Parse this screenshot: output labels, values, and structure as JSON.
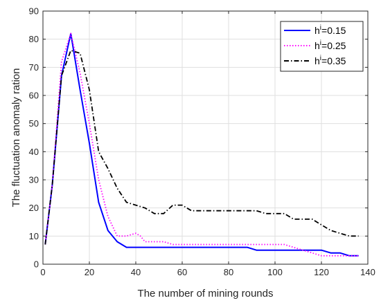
{
  "chart_data": {
    "type": "line",
    "title": "",
    "xlabel": "The number of mining rounds",
    "ylabel": "The fluctuation anomaly ration",
    "xlim": [
      0,
      140
    ],
    "ylim": [
      0,
      90
    ],
    "xticks": [
      0,
      20,
      40,
      60,
      80,
      100,
      120,
      140
    ],
    "yticks": [
      0,
      10,
      20,
      30,
      40,
      50,
      60,
      70,
      80,
      90
    ],
    "grid": true,
    "legend_position": "top-right",
    "series": [
      {
        "name_base": "h",
        "name_sup": "i",
        "name_value": "=0.15",
        "color": "#0000ff",
        "style": "solid",
        "x": [
          1,
          4,
          8,
          12,
          16,
          20,
          24,
          28,
          32,
          36,
          40,
          44,
          48,
          52,
          56,
          60,
          64,
          68,
          72,
          76,
          80,
          84,
          88,
          92,
          96,
          100,
          104,
          108,
          112,
          116,
          120,
          124,
          128,
          132,
          136
        ],
        "y": [
          7,
          28,
          67,
          82,
          62,
          43,
          22,
          12,
          8,
          6,
          6,
          6,
          6,
          6,
          6,
          6,
          6,
          6,
          6,
          6,
          6,
          6,
          6,
          5,
          5,
          5,
          5,
          5,
          5,
          5,
          5,
          4,
          4,
          3,
          3
        ]
      },
      {
        "name_base": "h",
        "name_sup": "i",
        "name_value": "=0.25",
        "color": "#ff00ff",
        "style": "dotted",
        "x": [
          1,
          4,
          8,
          12,
          16,
          20,
          24,
          28,
          32,
          36,
          40,
          42,
          44,
          48,
          52,
          56,
          60,
          64,
          68,
          72,
          76,
          80,
          84,
          88,
          92,
          96,
          100,
          104,
          108,
          112,
          116,
          120,
          124,
          128,
          132,
          136
        ],
        "y": [
          7,
          28,
          72,
          82,
          68,
          50,
          30,
          17,
          10,
          10,
          11,
          10,
          8,
          8,
          8,
          7,
          7,
          7,
          7,
          7,
          7,
          7,
          7,
          7,
          7,
          7,
          7,
          7,
          6,
          5,
          4,
          3,
          3,
          3,
          3,
          3
        ]
      },
      {
        "name_base": "h",
        "name_sup": "i",
        "name_value": "=0.35",
        "color": "#000000",
        "style": "dashdot",
        "x": [
          1,
          4,
          8,
          12,
          16,
          20,
          24,
          28,
          32,
          36,
          40,
          44,
          48,
          52,
          56,
          60,
          64,
          68,
          72,
          76,
          80,
          84,
          88,
          92,
          96,
          100,
          104,
          108,
          112,
          116,
          120,
          124,
          128,
          132,
          136
        ],
        "y": [
          7,
          28,
          67,
          76,
          75,
          62,
          40,
          34,
          27,
          22,
          21,
          20,
          18,
          18,
          21,
          21,
          19,
          19,
          19,
          19,
          19,
          19,
          19,
          19,
          18,
          18,
          18,
          16,
          16,
          16,
          14,
          12,
          11,
          10,
          10
        ]
      }
    ]
  }
}
